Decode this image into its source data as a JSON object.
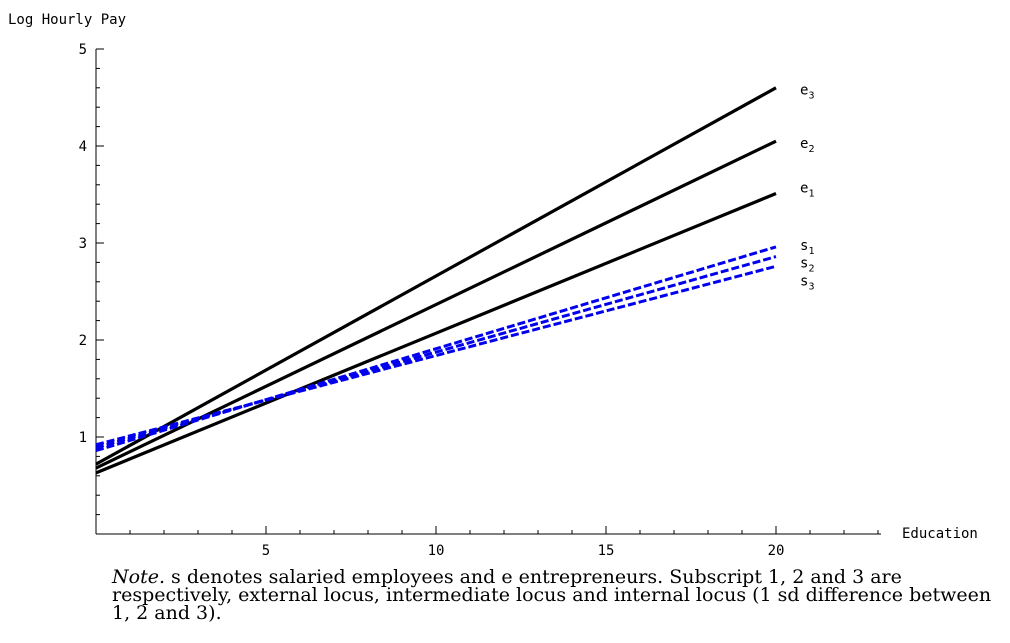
{
  "chart_data": {
    "type": "line",
    "title": "",
    "xlabel": "Education",
    "ylabel": "Log Hourly Pay",
    "xlim": [
      0,
      23
    ],
    "ylim": [
      0,
      5
    ],
    "xticks": [
      5,
      10,
      15,
      20
    ],
    "yticks": [
      1,
      2,
      3,
      4,
      5
    ],
    "x_minor_step": 1,
    "y_minor_step": 0.2,
    "grid": false,
    "legend": "none",
    "series": [
      {
        "name": "e3",
        "label_base": "e",
        "label_sub": "3",
        "x": [
          0,
          20
        ],
        "y": [
          0.72,
          4.6
        ],
        "color": "#000000",
        "dash": false
      },
      {
        "name": "e2",
        "label_base": "e",
        "label_sub": "2",
        "x": [
          0,
          20
        ],
        "y": [
          0.68,
          4.05
        ],
        "color": "#000000",
        "dash": false
      },
      {
        "name": "e1",
        "label_base": "e",
        "label_sub": "1",
        "x": [
          0,
          20
        ],
        "y": [
          0.63,
          3.51
        ],
        "color": "#000000",
        "dash": false
      },
      {
        "name": "s1",
        "label_base": "s",
        "label_sub": "1",
        "x": [
          0,
          20
        ],
        "y": [
          0.86,
          2.96
        ],
        "color": "#0000ee",
        "dash": true
      },
      {
        "name": "s2",
        "label_base": "s",
        "label_sub": "2",
        "x": [
          0,
          20
        ],
        "y": [
          0.89,
          2.86
        ],
        "color": "#0000ee",
        "dash": true
      },
      {
        "name": "s3",
        "label_base": "s",
        "label_sub": "3",
        "x": [
          0,
          20
        ],
        "y": [
          0.92,
          2.76
        ],
        "color": "#0000ee",
        "dash": true
      }
    ]
  },
  "note": {
    "head": "Note.",
    "text": " s denotes salaried employees and e entrepreneurs. Subscript 1, 2 and 3 are respectively, external locus, intermediate locus and internal locus (1 sd difference between 1, 2 and 3)."
  }
}
